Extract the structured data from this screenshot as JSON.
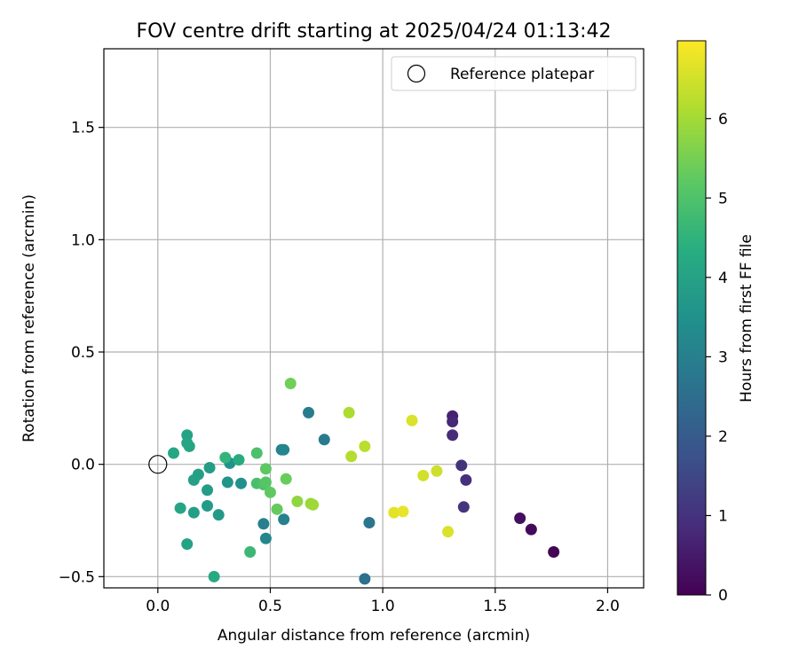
{
  "chart_data": {
    "type": "scatter",
    "title": "FOV centre drift starting at 2025/04/24 01:13:42",
    "xlabel": "Angular distance from reference (arcmin)",
    "ylabel": "Rotation from reference (arcmin)",
    "xlim": [
      -0.24,
      2.16
    ],
    "ylim": [
      -0.55,
      1.85
    ],
    "xticks": [
      0.0,
      0.5,
      1.0,
      1.5,
      2.0
    ],
    "xtick_labels": [
      "0.0",
      "0.5",
      "1.0",
      "1.5",
      "2.0"
    ],
    "yticks": [
      -0.5,
      0.0,
      0.5,
      1.0,
      1.5
    ],
    "ytick_labels": [
      "−0.5",
      "0.0",
      "0.5",
      "1.0",
      "1.5"
    ],
    "grid": true,
    "legend": {
      "placement": "top-right",
      "entries": [
        "Reference platepar"
      ]
    },
    "reference_point": {
      "x": 0.0,
      "y": 0.0
    },
    "colorbar": {
      "label": "Hours from first FF file",
      "colormap": "viridis",
      "range": [
        0,
        6.98
      ],
      "ticks": [
        0,
        1,
        2,
        3,
        4,
        5,
        6
      ],
      "tick_labels": [
        "0",
        "1",
        "2",
        "3",
        "4",
        "5",
        "6"
      ]
    },
    "points": [
      {
        "x": 1.76,
        "y": -0.39,
        "h": 0.05
      },
      {
        "x": 1.66,
        "y": -0.29,
        "h": 0.15
      },
      {
        "x": 1.61,
        "y": -0.24,
        "h": 0.25
      },
      {
        "x": 1.31,
        "y": 0.215,
        "h": 0.65
      },
      {
        "x": 1.31,
        "y": 0.19,
        "h": 0.75
      },
      {
        "x": 1.31,
        "y": 0.13,
        "h": 0.85
      },
      {
        "x": 1.35,
        "y": -0.005,
        "h": 1.0
      },
      {
        "x": 1.37,
        "y": -0.07,
        "h": 0.95
      },
      {
        "x": 1.36,
        "y": -0.19,
        "h": 1.05
      },
      {
        "x": 0.92,
        "y": -0.51,
        "h": 2.6
      },
      {
        "x": 0.94,
        "y": -0.26,
        "h": 2.7
      },
      {
        "x": 0.74,
        "y": 0.11,
        "h": 2.85
      },
      {
        "x": 0.67,
        "y": 0.23,
        "h": 2.9
      },
      {
        "x": 0.55,
        "y": 0.065,
        "h": 3.1
      },
      {
        "x": 0.56,
        "y": 0.065,
        "h": 3.15
      },
      {
        "x": 0.56,
        "y": -0.245,
        "h": 3.05
      },
      {
        "x": 0.47,
        "y": -0.265,
        "h": 3.0
      },
      {
        "x": 0.48,
        "y": -0.33,
        "h": 3.2
      },
      {
        "x": 0.37,
        "y": -0.085,
        "h": 3.5
      },
      {
        "x": 0.32,
        "y": 0.005,
        "h": 3.55
      },
      {
        "x": 0.31,
        "y": -0.08,
        "h": 3.6
      },
      {
        "x": 0.27,
        "y": -0.225,
        "h": 3.75
      },
      {
        "x": 0.22,
        "y": -0.185,
        "h": 3.8
      },
      {
        "x": 0.22,
        "y": -0.115,
        "h": 3.85
      },
      {
        "x": 0.23,
        "y": -0.015,
        "h": 3.85
      },
      {
        "x": 0.18,
        "y": -0.045,
        "h": 3.9
      },
      {
        "x": 0.16,
        "y": -0.07,
        "h": 3.95
      },
      {
        "x": 0.16,
        "y": -0.215,
        "h": 3.9
      },
      {
        "x": 0.13,
        "y": 0.13,
        "h": 4.0
      },
      {
        "x": 0.13,
        "y": 0.095,
        "h": 4.05
      },
      {
        "x": 0.14,
        "y": 0.08,
        "h": 4.1
      },
      {
        "x": 0.13,
        "y": -0.355,
        "h": 4.0
      },
      {
        "x": 0.1,
        "y": -0.195,
        "h": 4.1
      },
      {
        "x": 0.07,
        "y": 0.05,
        "h": 4.15
      },
      {
        "x": 0.25,
        "y": -0.5,
        "h": 4.2
      },
      {
        "x": 0.36,
        "y": 0.02,
        "h": 4.3
      },
      {
        "x": 0.3,
        "y": 0.03,
        "h": 4.55
      },
      {
        "x": 0.41,
        "y": -0.39,
        "h": 4.7
      },
      {
        "x": 0.44,
        "y": -0.085,
        "h": 4.9
      },
      {
        "x": 0.44,
        "y": 0.05,
        "h": 4.95
      },
      {
        "x": 0.47,
        "y": -0.09,
        "h": 5.0
      },
      {
        "x": 0.48,
        "y": -0.08,
        "h": 5.1
      },
      {
        "x": 0.48,
        "y": -0.02,
        "h": 5.2
      },
      {
        "x": 0.5,
        "y": -0.125,
        "h": 5.25
      },
      {
        "x": 0.53,
        "y": -0.2,
        "h": 5.3
      },
      {
        "x": 0.57,
        "y": -0.065,
        "h": 5.35
      },
      {
        "x": 0.59,
        "y": 0.36,
        "h": 5.45
      },
      {
        "x": 0.62,
        "y": -0.165,
        "h": 5.8
      },
      {
        "x": 0.68,
        "y": -0.175,
        "h": 5.9
      },
      {
        "x": 0.69,
        "y": -0.18,
        "h": 5.95
      },
      {
        "x": 0.85,
        "y": 0.23,
        "h": 6.1
      },
      {
        "x": 0.86,
        "y": 0.035,
        "h": 6.2
      },
      {
        "x": 0.92,
        "y": 0.08,
        "h": 6.25
      },
      {
        "x": 1.05,
        "y": -0.215,
        "h": 6.7
      },
      {
        "x": 1.09,
        "y": -0.21,
        "h": 6.75
      },
      {
        "x": 1.13,
        "y": 0.195,
        "h": 6.6
      },
      {
        "x": 1.18,
        "y": -0.05,
        "h": 6.5
      },
      {
        "x": 1.24,
        "y": -0.03,
        "h": 6.45
      },
      {
        "x": 1.29,
        "y": -0.3,
        "h": 6.6
      }
    ]
  }
}
